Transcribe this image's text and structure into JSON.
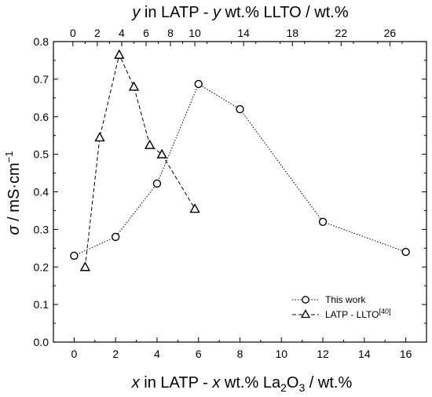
{
  "chart_data": {
    "type": "line",
    "xlabel": {
      "italic_var": "x",
      "pre": " in LATP - ",
      "mid": " wt.% La",
      "sub": "2",
      "post": "O",
      "sub2": "3",
      "end": " / wt.%"
    },
    "x2label": {
      "italic_var": "y",
      "pre": " in LATP - ",
      "mid": " wt.% LLTO / wt.%"
    },
    "ylabel": {
      "italic_var": "σ",
      "text": " / mS·cm",
      "sup": "−1"
    },
    "xlim": [
      -1,
      17
    ],
    "x2lim": [
      -1.6,
      29
    ],
    "ylim": [
      0,
      0.8
    ],
    "xticks": [
      "0",
      "2",
      "4",
      "6",
      "8",
      "10",
      "12",
      "14",
      "16"
    ],
    "x2ticks": [
      "0",
      "2",
      "4",
      "6",
      "8",
      "10",
      "14",
      "18",
      "22",
      "26"
    ],
    "yticks": [
      "0.0",
      "0.1",
      "0.2",
      "0.3",
      "0.4",
      "0.5",
      "0.6",
      "0.7",
      "0.8"
    ],
    "grid": false,
    "legend_position": "bottom-right",
    "series": [
      {
        "name": "This work",
        "marker": "circle",
        "line": "dotted",
        "axis": "bottom",
        "x": [
          0,
          2,
          4,
          6,
          8,
          12,
          16
        ],
        "y": [
          0.23,
          0.28,
          0.422,
          0.687,
          0.62,
          0.32,
          0.24
        ]
      },
      {
        "name": "LATP - LLTO",
        "name_sup": "[40]",
        "marker": "triangle",
        "line": "dashed",
        "axis": "top",
        "x": [
          1,
          2.2,
          3.8,
          5,
          6.3,
          7.3,
          10
        ],
        "y": [
          0.2,
          0.545,
          0.765,
          0.68,
          0.525,
          0.5,
          0.355
        ]
      }
    ]
  }
}
